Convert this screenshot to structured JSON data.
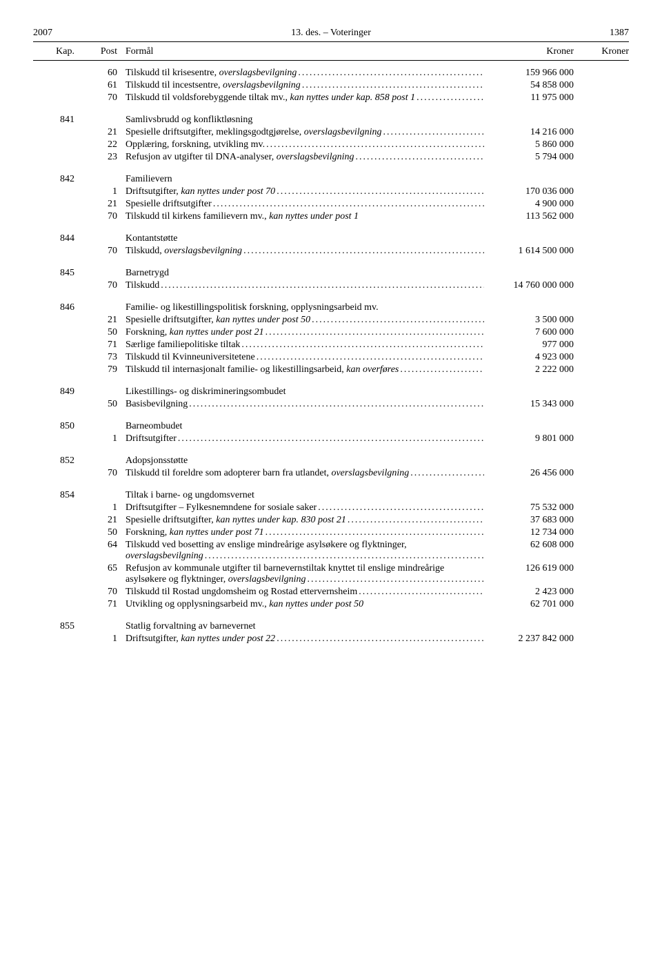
{
  "header": {
    "year": "2007",
    "center": "13. des. – Voteringer",
    "page": "1387"
  },
  "columns": {
    "kap": "Kap.",
    "post": "Post",
    "formal": "Formål",
    "kroner1": "Kroner",
    "kroner2": "Kroner"
  },
  "groups": [
    {
      "kap": "",
      "title": "",
      "rows": [
        {
          "post": "60",
          "text": "Tilskudd til krisesentre, ",
          "italic": "overslagsbevilgning",
          "amount": "159 966 000"
        },
        {
          "post": "61",
          "text": "Tilskudd til incestsentre, ",
          "italic": "overslagsbevilgning",
          "amount": "54 858 000"
        },
        {
          "post": "70",
          "text": "Tilskudd til voldsforebyggende tiltak mv., ",
          "italic": "kan nyttes under kap. 858 post 1",
          "amount": "11 975 000",
          "wrap": true
        }
      ]
    },
    {
      "kap": "841",
      "title": "Samlivsbrudd og konfliktløsning",
      "rows": [
        {
          "post": "21",
          "text": "Spesielle driftsutgifter, meklingsgodtgjørelse, ",
          "italic": "overslagsbevilgning",
          "amount": "14 216 000",
          "wrap": true
        },
        {
          "post": "22",
          "text": "Opplæring, forskning, utvikling mv.",
          "amount": "5 860 000"
        },
        {
          "post": "23",
          "text": "Refusjon av utgifter til DNA-analyser, ",
          "italic": "overslagsbevilgning",
          "amount": "5 794 000"
        }
      ]
    },
    {
      "kap": "842",
      "title": "Familievern",
      "rows": [
        {
          "post": "1",
          "text": "Driftsutgifter, ",
          "italic": "kan nyttes under post 70",
          "amount": "170 036 000"
        },
        {
          "post": "21",
          "text": "Spesielle driftsutgifter",
          "amount": "4 900 000"
        },
        {
          "post": "70",
          "text": "Tilskudd til kirkens familievern mv., ",
          "italic": "kan nyttes under post 1",
          "amount": "113 562 000",
          "noLeader": true
        }
      ]
    },
    {
      "kap": "844",
      "title": "Kontantstøtte",
      "rows": [
        {
          "post": "70",
          "text": "Tilskudd, ",
          "italic": "overslagsbevilgning",
          "amount": "1 614 500 000"
        }
      ]
    },
    {
      "kap": "845",
      "title": "Barnetrygd",
      "rows": [
        {
          "post": "70",
          "text": "Tilskudd",
          "amount": "14 760 000 000"
        }
      ]
    },
    {
      "kap": "846",
      "title": "Familie- og likestillingspolitisk forskning, opplysningsarbeid mv.",
      "titleWrap": true,
      "rows": [
        {
          "post": "21",
          "text": "Spesielle driftsutgifter, ",
          "italic": "kan nyttes under post 50",
          "amount": "3 500 000"
        },
        {
          "post": "50",
          "text": "Forskning, ",
          "italic": "kan nyttes under post 21",
          "amount": "7 600 000"
        },
        {
          "post": "71",
          "text": "Særlige familiepolitiske tiltak",
          "amount": "977 000"
        },
        {
          "post": "73",
          "text": "Tilskudd til Kvinneuniversitetene",
          "amount": "4 923 000"
        },
        {
          "post": "79",
          "text": "Tilskudd til internasjonalt familie- og likestillingsarbeid, ",
          "italic": "kan overføres",
          "amount": "2 222 000",
          "wrap": true
        }
      ]
    },
    {
      "kap": "849",
      "title": "Likestillings- og diskrimineringsombudet",
      "rows": [
        {
          "post": "50",
          "text": "Basisbevilgning",
          "amount": "15 343 000"
        }
      ]
    },
    {
      "kap": "850",
      "title": "Barneombudet",
      "rows": [
        {
          "post": "1",
          "text": "Driftsutgifter",
          "amount": "9 801 000"
        }
      ]
    },
    {
      "kap": "852",
      "title": "Adopsjonsstøtte",
      "rows": [
        {
          "post": "70",
          "text": "Tilskudd til foreldre som adopterer barn fra utlandet, ",
          "italic": "overslagsbevilgning",
          "amount": "26 456 000",
          "wrap": true
        }
      ]
    },
    {
      "kap": "854",
      "title": "Tiltak i barne- og ungdomsvernet",
      "rows": [
        {
          "post": "1",
          "text": "Driftsutgifter – Fylkesnemndene for sosiale saker",
          "amount": "75 532 000"
        },
        {
          "post": "21",
          "text": "Spesielle driftsutgifter, ",
          "italic": "kan nyttes under kap. 830 post 21",
          "amount": "37 683 000"
        },
        {
          "post": "50",
          "text": "Forskning, ",
          "italic": "kan nyttes under post 71",
          "amount": "12 734 000"
        },
        {
          "post": "64",
          "text": "Tilskudd ved bosetting av enslige mindreårige asylsøkere og flyktninger, ",
          "italic": "overslagsbevilgning",
          "amount": "62 608 000",
          "wrap": true
        },
        {
          "post": "65",
          "text": "Refusjon av kommunale utgifter til barnevernstiltak knyttet til enslige mindreårige asylsøkere og flyktninger, ",
          "italic": "overslagsbevilgning",
          "amount": "126 619 000",
          "wrap": true
        },
        {
          "post": "70",
          "text": "Tilskudd til Rostad ungdomsheim og Rostad ettervernsheim",
          "amount": "2 423 000"
        },
        {
          "post": "71",
          "text": "Utvikling og opplysningsarbeid mv., ",
          "italic": "kan nyttes under post 50",
          "amount": "62 701 000",
          "noLeader": true
        }
      ]
    },
    {
      "kap": "855",
      "title": "Statlig forvaltning av barnevernet",
      "rows": [
        {
          "post": "1",
          "text": "Driftsutgifter, ",
          "italic": "kan nyttes under post 22",
          "amount": "2 237 842 000"
        }
      ]
    }
  ]
}
